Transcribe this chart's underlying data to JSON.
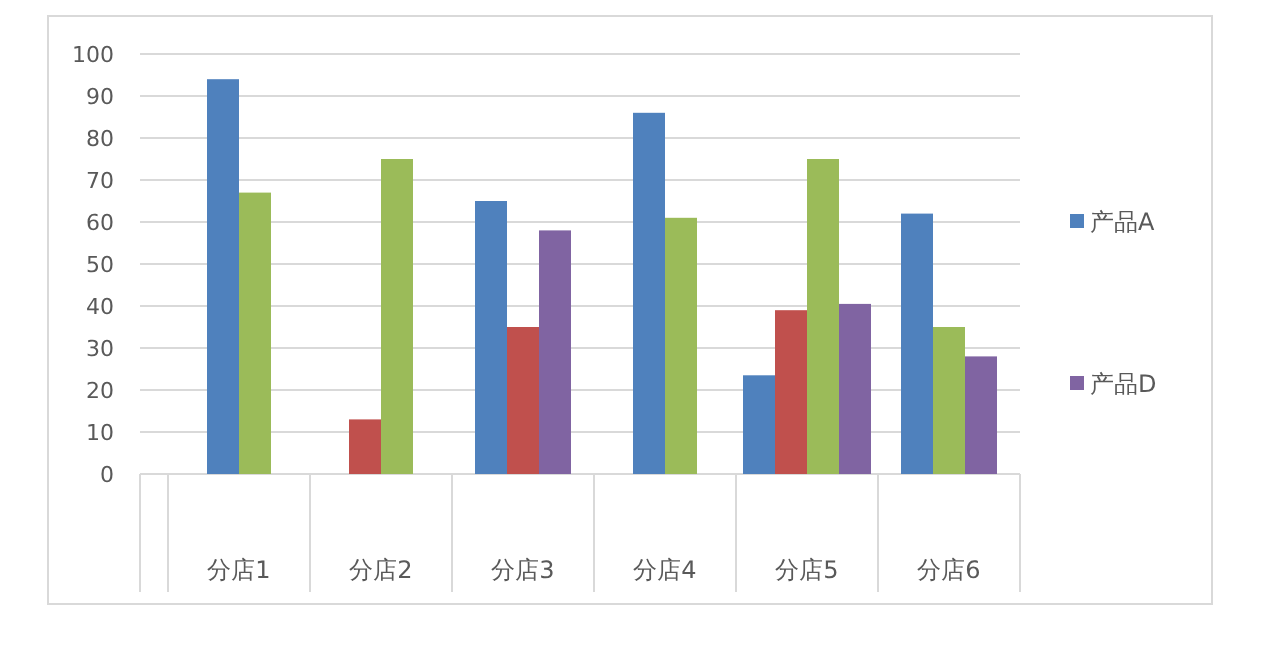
{
  "chart_data": {
    "type": "bar",
    "categories": [
      "分店1",
      "分店2",
      "分店3",
      "分店4",
      "分店5",
      "分店6"
    ],
    "series": [
      {
        "name": "产品A",
        "color": "#4f81bd",
        "values": [
          94,
          null,
          65,
          86,
          23.5,
          62
        ]
      },
      {
        "color": "#c0504d",
        "values": [
          null,
          13,
          35,
          null,
          39,
          null
        ]
      },
      {
        "color": "#9bbb59",
        "values": [
          67,
          75,
          null,
          61,
          75,
          35
        ]
      },
      {
        "name": "产品D",
        "color": "#8064a2",
        "values": [
          null,
          null,
          58,
          null,
          40.5,
          28
        ]
      }
    ],
    "ylim": [
      0,
      100
    ],
    "yticks": [
      0,
      10,
      20,
      30,
      40,
      50,
      60,
      70,
      80,
      90,
      100
    ],
    "grid": "y",
    "legend": "right"
  }
}
